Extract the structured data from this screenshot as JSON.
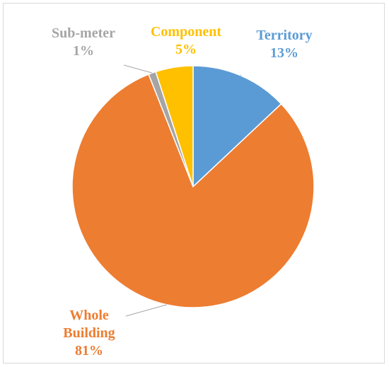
{
  "chart_data": {
    "type": "pie",
    "title": "",
    "slices": [
      {
        "label": "Territory",
        "value": 13,
        "value_label": "13%",
        "color": "#5B9BD5"
      },
      {
        "label": "Whole Building",
        "value": 81,
        "value_label": "81%",
        "color": "#ED7D31"
      },
      {
        "label": "Sub-meter",
        "value": 1,
        "value_label": "1%",
        "color": "#A5A5A5"
      },
      {
        "label": "Component",
        "value": 5,
        "value_label": "5%",
        "color": "#FFC000"
      }
    ],
    "start_angle_deg": 0,
    "direction": "clockwise",
    "legend": "none"
  }
}
